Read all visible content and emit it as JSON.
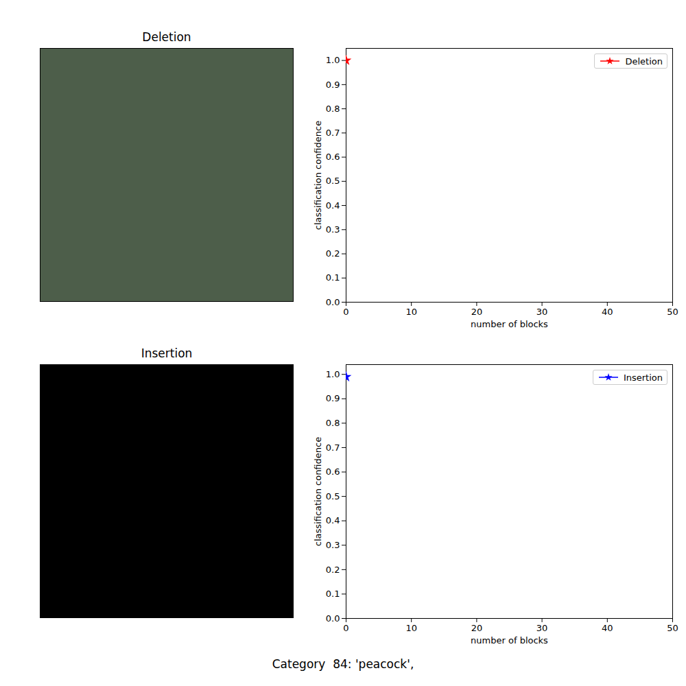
{
  "caption": "Category  84: 'peacock',",
  "chart_data": [
    {
      "type": "line",
      "image_title": "Deletion",
      "x_label": "number of blocks",
      "y_label": "classification confidence",
      "series": [
        {
          "name": "Deletion",
          "color": "red",
          "marker": "star",
          "line_style": "solid",
          "x": [
            0
          ],
          "values": [
            1.0
          ]
        }
      ],
      "xlim": [
        0,
        50
      ],
      "xticks": [
        0,
        10,
        20,
        30,
        40,
        50
      ],
      "ylim": [
        0,
        1.05
      ],
      "yticks": [
        {
          "value": 0,
          "label": "0.0"
        },
        {
          "value": 0.1,
          "label": "0.1"
        },
        {
          "value": 0.2,
          "label": "0.2"
        },
        {
          "value": 0.3,
          "label": "0.3"
        },
        {
          "value": 0.4,
          "label": "0.4"
        },
        {
          "value": 0.5,
          "label": "0.5"
        },
        {
          "value": 0.6,
          "label": "0.6"
        },
        {
          "value": 0.7,
          "label": "0.7"
        },
        {
          "value": 0.8,
          "label": "0.8"
        },
        {
          "value": 0.9,
          "label": "0.9"
        },
        {
          "value": 1.0,
          "label": "1.0"
        }
      ],
      "grid": false,
      "legend": "upper right"
    },
    {
      "type": "line",
      "image_title": "Insertion",
      "x_label": "number of blocks",
      "y_label": "classification confidence",
      "series": [
        {
          "name": "Insertion",
          "color": "blue",
          "marker": "star",
          "line_style": "solid",
          "x": [
            0
          ],
          "values": [
            0.99
          ]
        }
      ],
      "xlim": [
        0,
        50
      ],
      "xticks": [
        0,
        10,
        20,
        30,
        40,
        50
      ],
      "ylim": [
        0,
        1.04
      ],
      "yticks": [
        {
          "value": 0,
          "label": "0.0"
        },
        {
          "value": 0.1,
          "label": "0.1"
        },
        {
          "value": 0.2,
          "label": "0.2"
        },
        {
          "value": 0.3,
          "label": "0.3"
        },
        {
          "value": 0.4,
          "label": "0.4"
        },
        {
          "value": 0.5,
          "label": "0.5"
        },
        {
          "value": 0.6,
          "label": "0.6"
        },
        {
          "value": 0.7,
          "label": "0.7"
        },
        {
          "value": 0.8,
          "label": "0.8"
        },
        {
          "value": 0.9,
          "label": "0.9"
        },
        {
          "value": 1.0,
          "label": "1.0"
        }
      ],
      "grid": false,
      "legend": "upper right"
    }
  ]
}
